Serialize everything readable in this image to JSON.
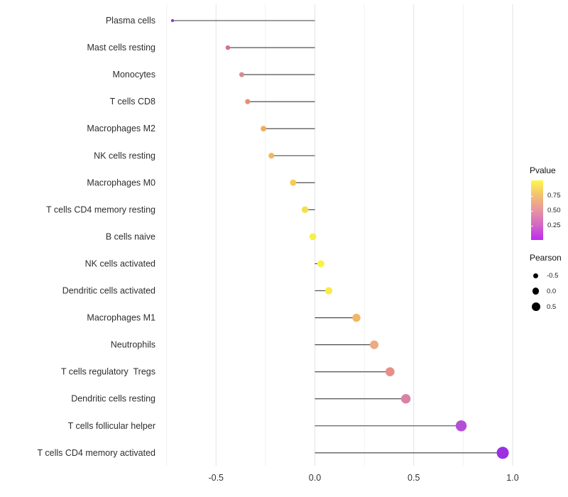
{
  "chart_data": {
    "type": "lollipop",
    "orientation": "horizontal",
    "title": "",
    "xlabel": "",
    "ylabel": "",
    "grid": "on",
    "legend_position": "right",
    "xlim": [
      -0.77,
      1.05
    ],
    "x_ticks": {
      "labels": [
        "-0.5",
        "0.0",
        "0.5",
        "1.0"
      ],
      "values": [
        -0.5,
        0.0,
        0.5,
        1.0
      ]
    },
    "x_minor_ticks": [
      -0.75,
      -0.25,
      0.25,
      0.75
    ],
    "baseline": 0,
    "categories": [
      "Plasma cells",
      "Mast cells resting",
      "Monocytes",
      "T cells CD8",
      "Macrophages M2",
      "NK cells resting",
      "Macrophages M0",
      "T cells CD4 memory resting",
      "B cells naive",
      "NK cells activated",
      "Dendritic cells activated",
      "Macrophages M1",
      "Neutrophils",
      "T cells regulatory  Tregs",
      "Dendritic cells resting",
      "T cells follicular helper",
      "T cells CD4 memory activated"
    ],
    "series": [
      {
        "name": "Pearson",
        "values": [
          -0.72,
          -0.44,
          -0.37,
          -0.34,
          -0.26,
          -0.22,
          -0.11,
          -0.05,
          -0.01,
          0.03,
          0.07,
          0.21,
          0.3,
          0.38,
          0.46,
          0.74,
          0.95
        ]
      }
    ],
    "point_colors": [
      "#9831D6",
      "#D0709B",
      "#DD8890",
      "#E29077",
      "#F2AB5D",
      "#F3B55E",
      "#F6CC50",
      "#F5DF4C",
      "#F8EF48",
      "#F9F246",
      "#F8EB48",
      "#F1B765",
      "#EDAB82",
      "#E78F87",
      "#DB80A6",
      "#B44ED8",
      "#9B2FE2"
    ],
    "stem_color": "#3c3c3c",
    "grid_major_color": "#e3e3e3",
    "grid_minor_color": "#f0f0f0"
  },
  "legend": {
    "pvalue": {
      "title": "Pvalue",
      "tick_labels": [
        "0.75",
        "0.50",
        "0.25"
      ],
      "gradient_top_to_bottom": [
        "#FDF74E",
        "#F4C06F",
        "#E795A0",
        "#D368C4",
        "#BE29F1"
      ]
    },
    "pearson": {
      "title": "Pearson",
      "dot_color": "#000000",
      "items": [
        {
          "label": "-0.5",
          "size": 7
        },
        {
          "label": "0.0",
          "size": 9.5
        },
        {
          "label": "0.5",
          "size": 12
        }
      ]
    }
  }
}
